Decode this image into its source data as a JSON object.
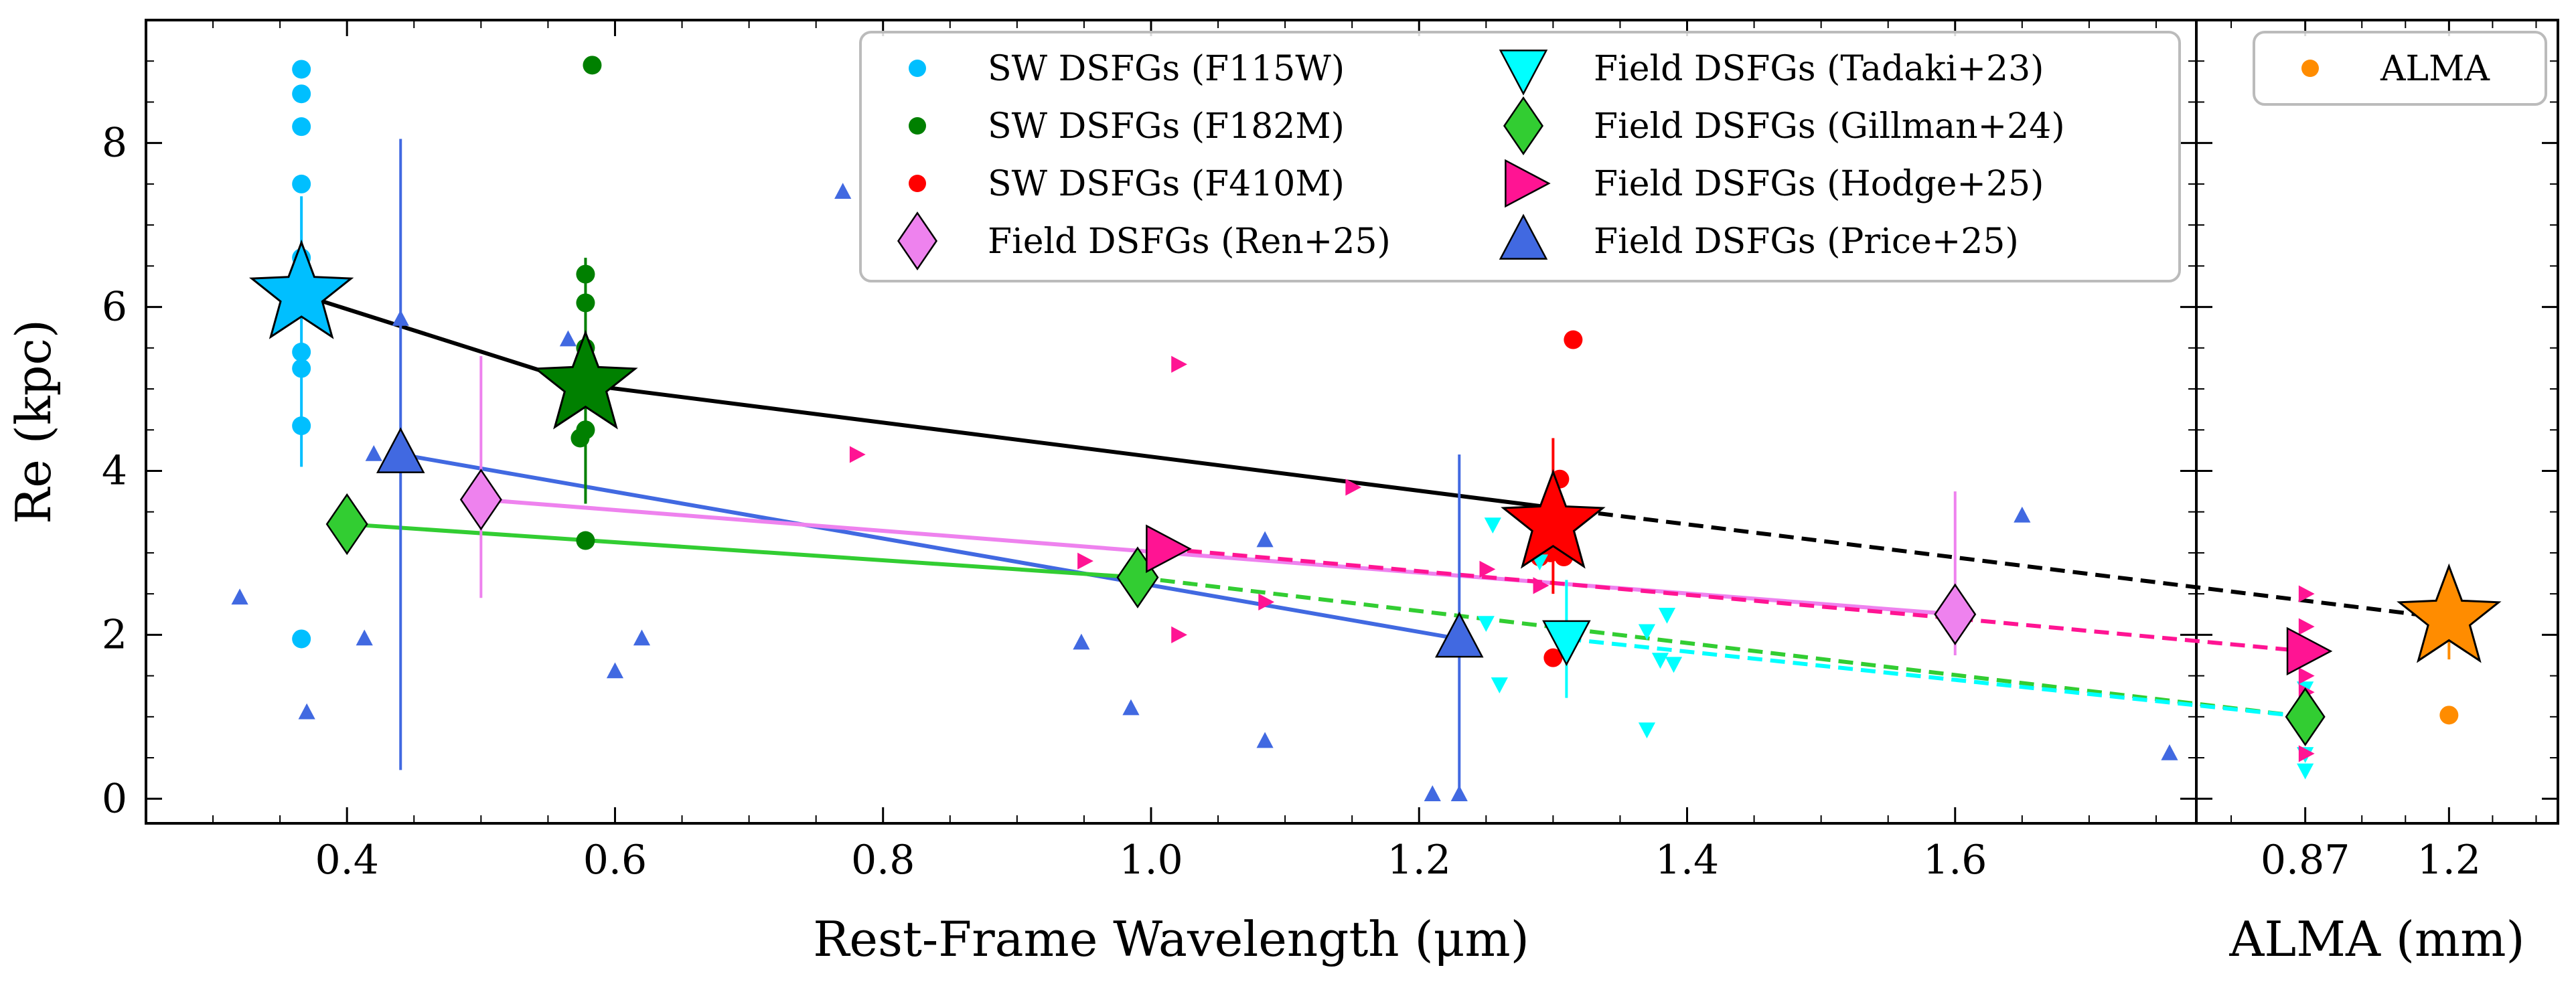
{
  "chart_data": {
    "type": "scatter",
    "title": "",
    "ylabel": "Re (kpc)",
    "ylim": [
      -0.3,
      9.5
    ],
    "yticks": [
      "0",
      "2",
      "4",
      "6",
      "8"
    ],
    "grid": false,
    "legend_placement": "top-right",
    "panels": [
      {
        "id": "main",
        "xlabel": "Rest-Frame Wavelength (μm)",
        "xlim": [
          0.25,
          1.78
        ],
        "xticks": [
          "0.4",
          "0.6",
          "0.8",
          "1.0",
          "1.2",
          "1.4",
          "1.6"
        ]
      },
      {
        "id": "alma",
        "xlabel": "ALMA (mm)",
        "xlim": [
          0.62,
          1.45
        ],
        "xticks": [
          "0.87",
          "1.2"
        ]
      }
    ],
    "series": [
      {
        "name": "SW DSFGs (F115W)",
        "panel": "main",
        "marker": "circle",
        "color": "#00bfff",
        "x": [
          0.366,
          0.366,
          0.366,
          0.366,
          0.366,
          0.366,
          0.366,
          0.366,
          0.366
        ],
        "y": [
          8.9,
          8.6,
          8.2,
          7.5,
          5.45,
          5.25,
          4.55,
          1.95,
          6.6
        ]
      },
      {
        "name": "SW DSFGs (F182M)",
        "panel": "main",
        "marker": "circle",
        "color": "#008000",
        "x": [
          0.583,
          0.578,
          0.578,
          0.578,
          0.574,
          0.578,
          0.578
        ],
        "y": [
          8.95,
          6.4,
          6.05,
          5.5,
          4.4,
          4.5,
          3.15
        ]
      },
      {
        "name": "SW DSFGs (F410M)",
        "panel": "main",
        "marker": "circle",
        "color": "#ff0000",
        "x": [
          1.315,
          1.305,
          1.29,
          1.298,
          1.308,
          1.3
        ],
        "y": [
          5.6,
          3.9,
          2.95,
          3.0,
          2.95,
          1.72
        ]
      },
      {
        "name": "Field DSFGs (Ren+25)",
        "panel": "main",
        "marker": "diamond",
        "color": "#ee82ee",
        "x": [
          0.5,
          1.6
        ],
        "y": [
          3.65,
          2.25
        ],
        "err_low": [
          1.2,
          0.5
        ],
        "err_high": [
          1.75,
          1.5
        ]
      },
      {
        "name": "Field DSFGs (Tadaki+23)",
        "panel": "main",
        "marker": "triangle-down",
        "color": "#00ffff",
        "x": [
          1.255,
          1.26,
          1.25,
          1.37,
          1.385,
          1.38,
          1.39,
          1.37,
          1.29
        ],
        "y": [
          3.35,
          1.4,
          2.15,
          0.85,
          2.25,
          1.7,
          1.65,
          2.05,
          2.9
        ],
        "mean": {
          "x": 1.31,
          "y": 1.95,
          "err_low": 0.72,
          "err_high": 0.72
        }
      },
      {
        "name": "Field DSFGs (Gillman+24)",
        "panel": "main",
        "marker": "diamond",
        "color": "#32cd32",
        "x": [
          0.4,
          0.99
        ],
        "y": [
          3.35,
          2.7
        ]
      },
      {
        "name": "Field DSFGs (Hodge+25)",
        "panel": "main",
        "marker": "triangle-right",
        "color": "#ff1493",
        "x": [
          0.78,
          1.02,
          1.15,
          0.95,
          1.085,
          1.02,
          1.25,
          1.29,
          1.003
        ],
        "y": [
          4.2,
          5.3,
          3.8,
          2.9,
          2.4,
          2.0,
          2.8,
          2.6,
          3.1
        ],
        "mean": {
          "x": 1.01,
          "y": 3.05
        }
      },
      {
        "name": "Field DSFGs (Price+25)",
        "panel": "main",
        "marker": "triangle-up",
        "color": "#4169e1",
        "x": [
          0.32,
          0.37,
          0.413,
          0.42,
          0.44,
          0.565,
          0.6,
          0.62,
          0.77,
          0.948,
          0.985,
          1.085,
          1.085,
          1.21,
          1.23,
          1.65,
          1.76
        ],
        "y": [
          2.45,
          1.05,
          1.95,
          4.2,
          5.85,
          5.6,
          1.55,
          1.95,
          7.4,
          1.9,
          1.1,
          3.15,
          0.7,
          0.05,
          0.05,
          3.45,
          0.55
        ],
        "means": [
          {
            "x": 0.44,
            "y": 4.2,
            "err_low": 3.85,
            "err_high": 3.85
          },
          {
            "x": 1.23,
            "y": 1.95,
            "err_low": 1.9,
            "err_high": 2.25
          }
        ]
      },
      {
        "name": "ALMA",
        "panel": "alma",
        "marker": "circle",
        "color": "#ff8c00",
        "x": [
          1.2
        ],
        "y": [
          1.02
        ]
      },
      {
        "name": "ALMA",
        "panel": "alma",
        "marker": "triangle-down",
        "color": "#00ffff",
        "in_legend": false,
        "x": [
          0.87,
          0.87,
          0.87,
          0.87
        ],
        "y": [
          0.35,
          0.55,
          0.85,
          1.35
        ]
      },
      {
        "name": "ALMA",
        "panel": "alma",
        "marker": "triangle-right",
        "color": "#ff1493",
        "in_legend": false,
        "x": [
          0.87,
          0.87,
          0.87,
          0.87,
          0.87,
          0.87
        ],
        "y": [
          2.5,
          2.1,
          1.75,
          1.5,
          1.3,
          0.55
        ]
      }
    ],
    "stars": [
      {
        "panel": "main",
        "x": 0.366,
        "y": 6.15,
        "color": "#00bfff",
        "err_low": 2.1,
        "err_high": 1.2
      },
      {
        "panel": "main",
        "x": 0.578,
        "y": 5.05,
        "color": "#008000",
        "err_low": 1.45,
        "err_high": 1.55
      },
      {
        "panel": "main",
        "x": 1.3,
        "y": 3.35,
        "color": "#ff0000",
        "err_low": 0.85,
        "err_high": 1.05
      },
      {
        "panel": "alma",
        "x": 1.2,
        "y": 2.2,
        "color": "#ff8c00",
        "err_low": 0.5,
        "err_high": 0.5
      }
    ],
    "alma_markers": [
      {
        "x": 0.87,
        "y": 1.0,
        "marker": "diamond",
        "color": "#32cd32"
      },
      {
        "x": 0.87,
        "y": 1.8,
        "marker": "triangle-right",
        "color": "#ff1493"
      }
    ],
    "trend_lines": [
      {
        "color": "#000000",
        "solid": [
          [
            0.366,
            6.15
          ],
          [
            0.578,
            5.05
          ],
          [
            1.3,
            3.55
          ]
        ],
        "dashed_to_alma": [
          1.2,
          2.2
        ]
      },
      {
        "color": "#4169e1",
        "solid": [
          [
            0.44,
            4.2
          ],
          [
            1.23,
            1.95
          ]
        ]
      },
      {
        "color": "#ee82ee",
        "solid": [
          [
            0.5,
            3.65
          ],
          [
            1.6,
            2.25
          ]
        ]
      },
      {
        "color": "#32cd32",
        "solid": [
          [
            0.4,
            3.35
          ],
          [
            0.99,
            2.7
          ]
        ],
        "dashed_from": [
          0.99,
          2.7
        ],
        "dashed_to_alma": [
          0.87,
          1.0
        ]
      },
      {
        "color": "#ff1493",
        "dashed": [
          [
            1.01,
            3.05
          ],
          [
            1.6,
            2.2
          ]
        ],
        "dashed_to_alma": [
          0.87,
          1.8
        ]
      },
      {
        "color": "#00ffff",
        "dashed": [
          [
            1.31,
            1.95
          ]
        ],
        "dashed_to_alma": [
          0.87,
          1.0
        ]
      }
    ],
    "legend_main": [
      {
        "label": "SW DSFGs (F115W)",
        "marker": "circle",
        "color": "#00bfff"
      },
      {
        "label": "SW DSFGs (F182M)",
        "marker": "circle",
        "color": "#008000"
      },
      {
        "label": "SW DSFGs (F410M)",
        "marker": "circle",
        "color": "#ff0000"
      },
      {
        "label": "Field DSFGs (Ren+25)",
        "marker": "diamond",
        "color": "#ee82ee"
      },
      {
        "label": "Field DSFGs (Tadaki+23)",
        "marker": "triangle-down",
        "color": "#00ffff"
      },
      {
        "label": "Field DSFGs (Gillman+24)",
        "marker": "diamond",
        "color": "#32cd32"
      },
      {
        "label": "Field DSFGs (Hodge+25)",
        "marker": "triangle-right",
        "color": "#ff1493"
      },
      {
        "label": "Field DSFGs (Price+25)",
        "marker": "triangle-up",
        "color": "#4169e1"
      }
    ],
    "legend_alma": [
      {
        "label": "ALMA",
        "marker": "circle",
        "color": "#ff8c00"
      }
    ]
  }
}
